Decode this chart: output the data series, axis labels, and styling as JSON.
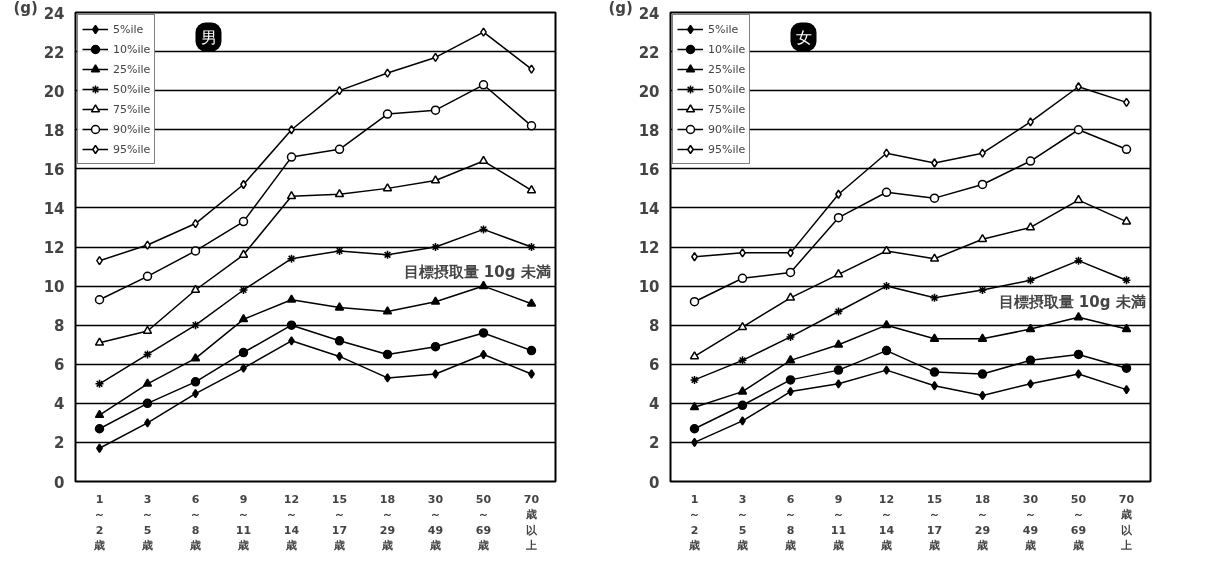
{
  "chart_data": [
    {
      "type": "line",
      "subtitle": "男",
      "ylabel": "(g)",
      "categories": [
        "1～2歳",
        "3～5歳",
        "6～8歳",
        "9～11歳",
        "12～14歳",
        "15～17歳",
        "18～29歳",
        "30～49歳",
        "50～69歳",
        "70歳以上"
      ],
      "series": [
        {
          "name": "5%ile",
          "color": "#000000",
          "marker": "diamond",
          "values": [
            1.7,
            3.0,
            4.5,
            5.8,
            7.2,
            6.4,
            5.3,
            5.5,
            6.5,
            5.5
          ]
        },
        {
          "name": "10%ile",
          "color": "#000000",
          "marker": "circle",
          "values": [
            2.7,
            4.0,
            5.1,
            6.6,
            8.0,
            7.2,
            6.5,
            6.9,
            7.6,
            6.7
          ]
        },
        {
          "name": "25%ile",
          "color": "#000000",
          "marker": "triangle",
          "values": [
            3.4,
            5.0,
            6.3,
            8.3,
            9.3,
            8.9,
            8.7,
            9.2,
            10.0,
            9.1
          ]
        },
        {
          "name": "50%ile",
          "color": "#000000",
          "marker": "cross",
          "values": [
            5.0,
            6.5,
            8.0,
            9.8,
            11.4,
            11.8,
            11.6,
            12.0,
            12.9,
            12.0
          ]
        },
        {
          "name": "75%ile",
          "color": "#000000",
          "marker": "triangle",
          "values": [
            7.1,
            7.7,
            9.8,
            11.6,
            14.6,
            14.7,
            15.0,
            15.4,
            16.4,
            14.9
          ]
        },
        {
          "name": "90%ile",
          "color": "#000000",
          "marker": "circle",
          "values": [
            9.3,
            10.5,
            11.8,
            13.3,
            16.6,
            17.0,
            18.8,
            19.0,
            20.3,
            18.2
          ]
        },
        {
          "name": "95%ile",
          "color": "#000000",
          "marker": "diamond",
          "values": [
            11.3,
            12.1,
            13.2,
            15.2,
            18.0,
            20.0,
            20.9,
            21.7,
            23.0,
            21.1
          ]
        }
      ],
      "annotations": [
        "目標摂取量 10g 未満"
      ],
      "ylim": [
        0,
        24
      ],
      "yticks": [
        0,
        2,
        4,
        6,
        8,
        10,
        12,
        14,
        16,
        18,
        20,
        22,
        24
      ],
      "grid": "y",
      "legend": "top left",
      "line_style": "solid"
    },
    {
      "type": "line",
      "subtitle": "女",
      "ylabel": "(g)",
      "categories": [
        "1～2歳",
        "3～5歳",
        "6～8歳",
        "9～11歳",
        "12～14歳",
        "15～17歳",
        "18～29歳",
        "30～49歳",
        "50～69歳",
        "70歳以上"
      ],
      "series": [
        {
          "name": "5%ile",
          "color": "#000000",
          "marker": "diamond",
          "values": [
            2.0,
            3.1,
            4.6,
            5.0,
            5.7,
            4.9,
            4.4,
            5.0,
            5.5,
            4.7
          ]
        },
        {
          "name": "10%ile",
          "color": "#000000",
          "marker": "circle",
          "values": [
            2.7,
            3.9,
            5.2,
            5.7,
            6.7,
            5.6,
            5.5,
            6.2,
            6.5,
            5.8
          ]
        },
        {
          "name": "25%ile",
          "color": "#000000",
          "marker": "triangle",
          "values": [
            3.8,
            4.6,
            6.2,
            7.0,
            8.0,
            7.3,
            7.3,
            7.8,
            8.4,
            7.8
          ]
        },
        {
          "name": "50%ile",
          "color": "#000000",
          "marker": "cross",
          "values": [
            5.2,
            6.2,
            7.4,
            8.7,
            10.0,
            9.4,
            9.8,
            10.3,
            11.3,
            10.3
          ]
        },
        {
          "name": "75%ile",
          "color": "#000000",
          "marker": "triangle",
          "values": [
            6.4,
            7.9,
            9.4,
            10.6,
            11.8,
            11.4,
            12.4,
            13.0,
            14.4,
            13.3
          ]
        },
        {
          "name": "90%ile",
          "color": "#000000",
          "marker": "circle",
          "values": [
            9.2,
            10.4,
            10.7,
            13.5,
            14.8,
            14.5,
            15.2,
            16.4,
            18.0,
            17.0
          ]
        },
        {
          "name": "95%ile",
          "color": "#000000",
          "marker": "diamond",
          "values": [
            11.5,
            11.7,
            11.7,
            14.7,
            16.8,
            16.3,
            16.8,
            18.4,
            20.2,
            19.4
          ]
        }
      ],
      "annotations": [
        "目標摂取量 10g 未満"
      ],
      "ylim": [
        0,
        24
      ],
      "yticks": [
        0,
        2,
        4,
        6,
        8,
        10,
        12,
        14,
        16,
        18,
        20,
        22,
        24
      ],
      "grid": "y",
      "legend": "top left",
      "line_style": "solid"
    }
  ]
}
